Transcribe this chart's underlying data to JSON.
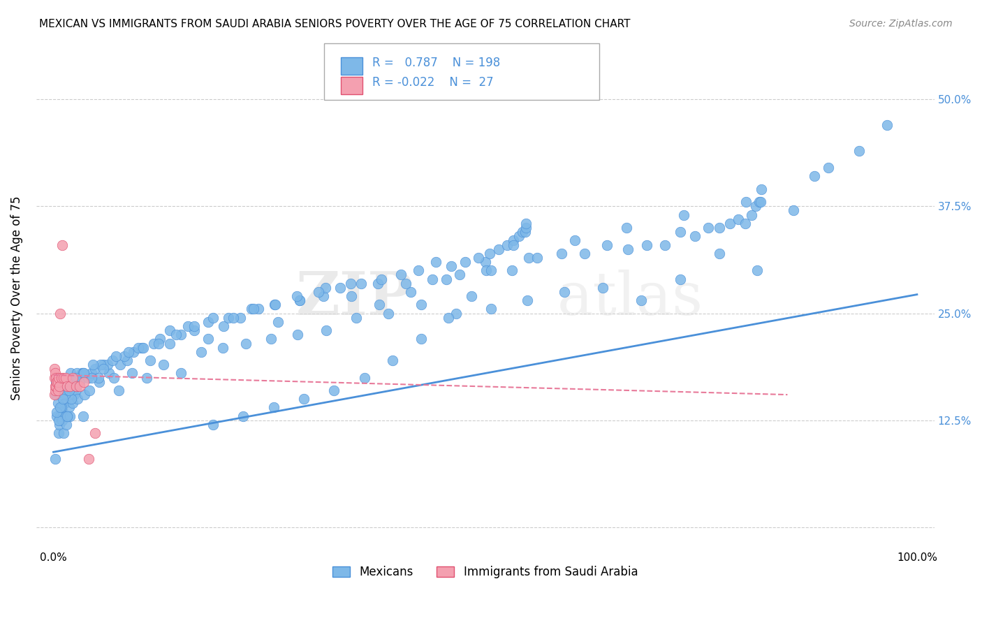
{
  "title": "MEXICAN VS IMMIGRANTS FROM SAUDI ARABIA SENIORS POVERTY OVER THE AGE OF 75 CORRELATION CHART",
  "source": "Source: ZipAtlas.com",
  "ylabel": "Seniors Poverty Over the Age of 75",
  "xlim": [
    -0.02,
    1.02
  ],
  "ylim": [
    -0.025,
    0.56
  ],
  "xticks": [
    0.0,
    0.1,
    0.2,
    0.3,
    0.4,
    0.5,
    0.6,
    0.7,
    0.8,
    0.9,
    1.0
  ],
  "xticklabels": [
    "0.0%",
    "",
    "",
    "",
    "",
    "",
    "",
    "",
    "",
    "",
    "100.0%"
  ],
  "ytick_positions": [
    0.0,
    0.125,
    0.25,
    0.375,
    0.5
  ],
  "ytick_labels": [
    "",
    "12.5%",
    "25.0%",
    "37.5%",
    "50.0%"
  ],
  "color_mexican": "#7EB8E8",
  "color_saudi": "#F4A0B0",
  "color_line_mexican": "#4A90D9",
  "color_line_saudi": "#E87A9A",
  "watermark_zip": "ZIP",
  "watermark_atlas": "atlas",
  "background_color": "#ffffff",
  "grid_color": "#cccccc",
  "mexican_x": [
    0.002,
    0.003,
    0.004,
    0.005,
    0.006,
    0.007,
    0.008,
    0.009,
    0.01,
    0.011,
    0.012,
    0.013,
    0.014,
    0.015,
    0.016,
    0.017,
    0.018,
    0.019,
    0.02,
    0.022,
    0.024,
    0.026,
    0.028,
    0.03,
    0.033,
    0.036,
    0.04,
    0.044,
    0.048,
    0.053,
    0.058,
    0.064,
    0.07,
    0.077,
    0.085,
    0.093,
    0.102,
    0.112,
    0.123,
    0.135,
    0.148,
    0.163,
    0.179,
    0.197,
    0.216,
    0.237,
    0.26,
    0.285,
    0.313,
    0.344,
    0.377,
    0.414,
    0.455,
    0.5,
    0.55,
    0.604,
    0.664,
    0.73,
    0.802,
    0.881,
    0.003,
    0.006,
    0.009,
    0.012,
    0.016,
    0.021,
    0.027,
    0.034,
    0.042,
    0.052,
    0.063,
    0.076,
    0.091,
    0.108,
    0.127,
    0.148,
    0.171,
    0.196,
    0.223,
    0.252,
    0.283,
    0.316,
    0.351,
    0.388,
    0.426,
    0.466,
    0.507,
    0.549,
    0.592,
    0.636,
    0.681,
    0.726,
    0.771,
    0.815,
    0.857,
    0.897,
    0.933,
    0.965,
    0.004,
    0.008,
    0.013,
    0.019,
    0.026,
    0.034,
    0.044,
    0.055,
    0.068,
    0.082,
    0.098,
    0.116,
    0.135,
    0.156,
    0.179,
    0.203,
    0.229,
    0.256,
    0.285,
    0.315,
    0.345,
    0.376,
    0.408,
    0.439,
    0.47,
    0.501,
    0.531,
    0.56,
    0.588,
    0.615,
    0.641,
    0.665,
    0.687,
    0.708,
    0.726,
    0.743,
    0.758,
    0.771,
    0.783,
    0.793,
    0.801,
    0.808,
    0.813,
    0.817,
    0.819,
    0.82,
    0.005,
    0.011,
    0.018,
    0.026,
    0.035,
    0.046,
    0.058,
    0.072,
    0.087,
    0.104,
    0.122,
    0.142,
    0.163,
    0.185,
    0.208,
    0.232,
    0.257,
    0.282,
    0.307,
    0.332,
    0.356,
    0.38,
    0.402,
    0.423,
    0.443,
    0.461,
    0.477,
    0.492,
    0.505,
    0.516,
    0.525,
    0.533,
    0.539,
    0.543,
    0.546,
    0.547,
    0.547,
    0.533,
    0.507,
    0.484,
    0.457,
    0.426,
    0.393,
    0.36,
    0.325,
    0.29,
    0.255,
    0.22,
    0.185
  ],
  "mexican_y": [
    0.08,
    0.155,
    0.13,
    0.145,
    0.11,
    0.12,
    0.13,
    0.14,
    0.125,
    0.135,
    0.11,
    0.145,
    0.13,
    0.12,
    0.16,
    0.13,
    0.14,
    0.13,
    0.18,
    0.145,
    0.155,
    0.16,
    0.15,
    0.17,
    0.18,
    0.155,
    0.175,
    0.18,
    0.185,
    0.17,
    0.19,
    0.18,
    0.175,
    0.19,
    0.195,
    0.205,
    0.21,
    0.195,
    0.22,
    0.215,
    0.225,
    0.23,
    0.22,
    0.235,
    0.245,
    0.255,
    0.24,
    0.265,
    0.27,
    0.285,
    0.26,
    0.275,
    0.29,
    0.31,
    0.315,
    0.335,
    0.35,
    0.365,
    0.38,
    0.41,
    0.17,
    0.125,
    0.14,
    0.16,
    0.13,
    0.15,
    0.18,
    0.13,
    0.16,
    0.175,
    0.19,
    0.16,
    0.18,
    0.175,
    0.19,
    0.18,
    0.205,
    0.21,
    0.215,
    0.22,
    0.225,
    0.23,
    0.245,
    0.25,
    0.26,
    0.25,
    0.255,
    0.265,
    0.275,
    0.28,
    0.265,
    0.29,
    0.32,
    0.3,
    0.37,
    0.42,
    0.44,
    0.47,
    0.135,
    0.14,
    0.155,
    0.17,
    0.165,
    0.18,
    0.175,
    0.19,
    0.195,
    0.2,
    0.21,
    0.215,
    0.23,
    0.235,
    0.24,
    0.245,
    0.255,
    0.26,
    0.265,
    0.28,
    0.27,
    0.285,
    0.285,
    0.29,
    0.295,
    0.3,
    0.3,
    0.315,
    0.32,
    0.32,
    0.33,
    0.325,
    0.33,
    0.33,
    0.345,
    0.34,
    0.35,
    0.35,
    0.355,
    0.36,
    0.355,
    0.365,
    0.375,
    0.38,
    0.38,
    0.395,
    0.165,
    0.15,
    0.16,
    0.175,
    0.18,
    0.19,
    0.185,
    0.2,
    0.205,
    0.21,
    0.215,
    0.225,
    0.235,
    0.245,
    0.245,
    0.255,
    0.26,
    0.27,
    0.275,
    0.28,
    0.285,
    0.29,
    0.295,
    0.3,
    0.31,
    0.305,
    0.31,
    0.315,
    0.32,
    0.325,
    0.33,
    0.335,
    0.34,
    0.345,
    0.345,
    0.35,
    0.355,
    0.33,
    0.3,
    0.27,
    0.245,
    0.22,
    0.195,
    0.175,
    0.16,
    0.15,
    0.14,
    0.13,
    0.12
  ],
  "saudi_x": [
    0.001,
    0.001,
    0.001,
    0.002,
    0.002,
    0.002,
    0.003,
    0.003,
    0.004,
    0.004,
    0.005,
    0.005,
    0.006,
    0.007,
    0.008,
    0.009,
    0.01,
    0.012,
    0.014,
    0.016,
    0.019,
    0.022,
    0.026,
    0.03,
    0.035,
    0.041,
    0.048
  ],
  "saudi_y": [
    0.175,
    0.185,
    0.155,
    0.16,
    0.165,
    0.18,
    0.175,
    0.165,
    0.17,
    0.17,
    0.16,
    0.17,
    0.175,
    0.165,
    0.25,
    0.175,
    0.33,
    0.175,
    0.175,
    0.165,
    0.165,
    0.175,
    0.165,
    0.165,
    0.17,
    0.08,
    0.11
  ],
  "mexican_trend_x": [
    0.0,
    1.0
  ],
  "mexican_trend_y": [
    0.088,
    0.272
  ],
  "saudi_trend_x": [
    0.0,
    0.85
  ],
  "saudi_trend_y": [
    0.178,
    0.155
  ]
}
